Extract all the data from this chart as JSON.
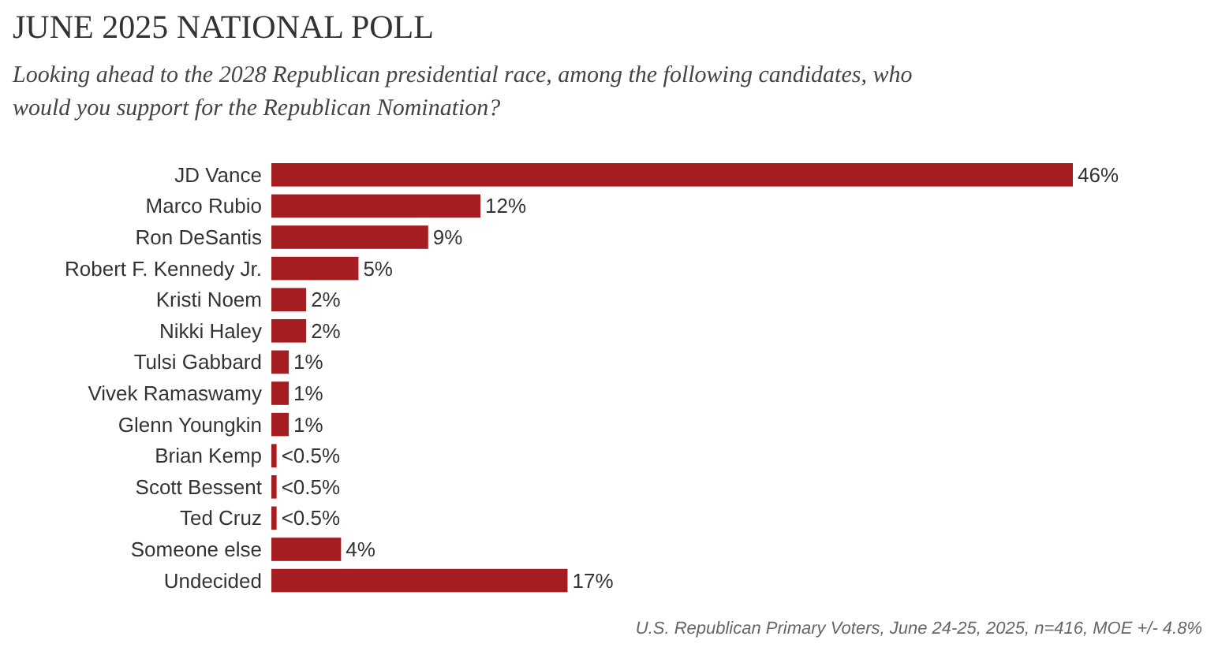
{
  "chart_data": {
    "type": "bar",
    "orientation": "horizontal",
    "title": "JUNE 2025 NATIONAL POLL",
    "subtitle": "Looking ahead to the 2028 Republican presidential race, among the following candidates, who would you support for the Republican Nomination?",
    "categories": [
      "JD Vance",
      "Marco Rubio",
      "Ron DeSantis",
      "Robert F. Kennedy Jr.",
      "Kristi Noem",
      "Nikki Haley",
      "Tulsi Gabbard",
      "Vivek Ramaswamy",
      "Glenn Youngkin",
      "Brian Kemp",
      "Scott Bessent",
      "Ted Cruz",
      "Someone else",
      "Undecided"
    ],
    "values": [
      46,
      12,
      9,
      5,
      2,
      2,
      1,
      1,
      1,
      0.3,
      0.3,
      0.3,
      4,
      17
    ],
    "value_labels": [
      "46%",
      "12%",
      "9%",
      "5%",
      "2%",
      "2%",
      "1%",
      "1%",
      "1%",
      "<0.5%",
      "<0.5%",
      "<0.5%",
      "4%",
      "17%"
    ],
    "color": "#a51d20",
    "annotations": [
      "U.S. Republican Primary Voters, June 24-25, 2025, n=416, MOE +/- 4.8%"
    ]
  }
}
